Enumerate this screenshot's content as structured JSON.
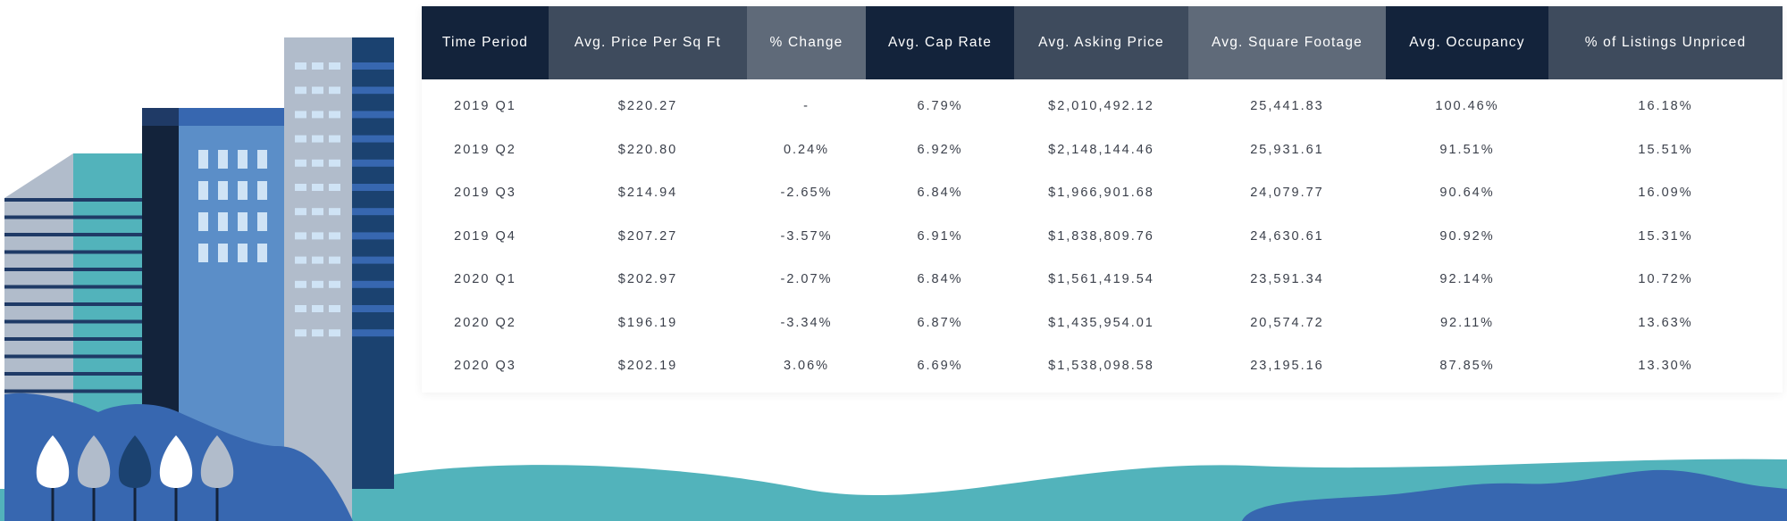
{
  "table": {
    "headers": [
      "Time Period",
      "Avg. Price Per Sq Ft",
      "% Change",
      "Avg. Cap Rate",
      "Avg. Asking Price",
      "Avg. Square Footage",
      "Avg. Occupancy",
      "% of Listings Unpriced"
    ],
    "header_colors": [
      "#13233b",
      "#3e4b5d",
      "#5f6a79",
      "#13233b",
      "#3e4b5d",
      "#5f6a79",
      "#13233b",
      "#3e4b5d"
    ],
    "rows": [
      [
        "2019 Q1",
        "$220.27",
        "-",
        "6.79%",
        "$2,010,492.12",
        "25,441.83",
        "100.46%",
        "16.18%"
      ],
      [
        "2019 Q2",
        "$220.80",
        "0.24%",
        "6.92%",
        "$2,148,144.46",
        "25,931.61",
        "91.51%",
        "15.51%"
      ],
      [
        "2019 Q3",
        "$214.94",
        "-2.65%",
        "6.84%",
        "$1,966,901.68",
        "24,079.77",
        "90.64%",
        "16.09%"
      ],
      [
        "2019 Q4",
        "$207.27",
        "-3.57%",
        "6.91%",
        "$1,838,809.76",
        "24,630.61",
        "90.92%",
        "15.31%"
      ],
      [
        "2020 Q1",
        "$202.97",
        "-2.07%",
        "6.84%",
        "$1,561,419.54",
        "23,591.34",
        "92.14%",
        "10.72%"
      ],
      [
        "2020 Q2",
        "$196.19",
        "-3.34%",
        "6.87%",
        "$1,435,954.01",
        "20,574.72",
        "92.11%",
        "13.63%"
      ],
      [
        "2020 Q3",
        "$202.19",
        "3.06%",
        "6.69%",
        "$1,538,098.58",
        "23,195.16",
        "87.85%",
        "13.30%"
      ]
    ]
  },
  "colors": {
    "navy": "#13233b",
    "slate": "#3e4b5d",
    "gray": "#5f6a79",
    "teal": "#52b3bb",
    "blue": "#3767b0",
    "light_blue": "#5b8ec8",
    "pale_gray": "#b1bccb"
  }
}
